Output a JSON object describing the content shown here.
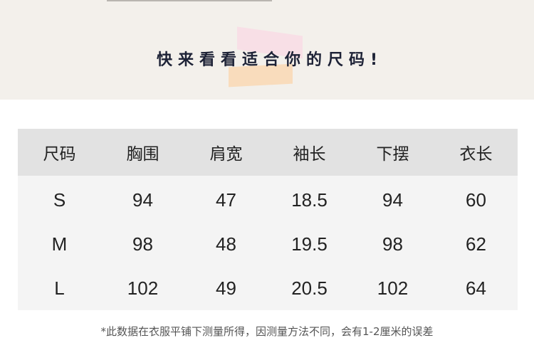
{
  "title": "快来看看适合你的尺码!",
  "table": {
    "headers": [
      "尺码",
      "胸围",
      "肩宽",
      "袖长",
      "下摆",
      "衣长"
    ],
    "rows": [
      [
        "S",
        "94",
        "47",
        "18.5",
        "94",
        "60"
      ],
      [
        "M",
        "98",
        "48",
        "19.5",
        "98",
        "62"
      ],
      [
        "L",
        "102",
        "49",
        "20.5",
        "102",
        "64"
      ]
    ]
  },
  "note": "*此数据在衣服平铺下测量所得，因测量方法不同，会有1-2厘米的误差",
  "colors": {
    "banner": "#f3f0eb",
    "header": "#e2e2e2",
    "body": "#f4f4f4",
    "title": "#1d2236"
  }
}
